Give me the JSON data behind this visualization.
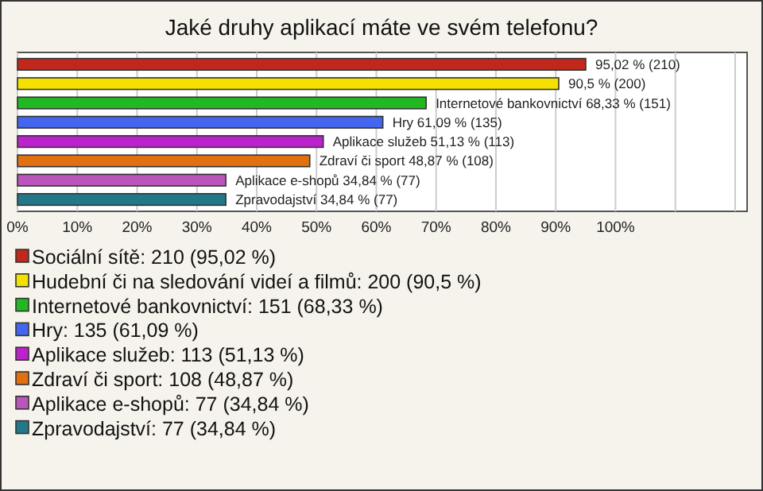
{
  "chart_data": {
    "type": "bar",
    "orientation": "horizontal",
    "title": "Jaké druhy aplikací máte ve svém telefonu?",
    "categories": [
      null
    ],
    "series": [
      {
        "name": "Sociální sítě: 210 (95,02 %)",
        "color": "#c0281c",
        "values": [
          95.02
        ],
        "value_labels": [
          "95,02 % (210)"
        ]
      },
      {
        "name": "Hudební či na sledování videí a filmů: 200 (90,5 %)",
        "color": "#f5e100",
        "values": [
          90.5
        ],
        "value_labels": [
          "90,5 % (200)"
        ]
      },
      {
        "name": "Internetové bankovnictví: 151 (68,33 %)",
        "color": "#22b822",
        "values": [
          68.33
        ],
        "value_labels": [
          "Internetové bankovnictví 68,33 % (151)"
        ]
      },
      {
        "name": "Hry: 135 (61,09 %)",
        "color": "#4466ee",
        "values": [
          61.09
        ],
        "value_labels": [
          "Hry 61,09 % (135)"
        ]
      },
      {
        "name": "Aplikace služeb: 113 (51,13 %)",
        "color": "#bb22cc",
        "values": [
          51.13
        ],
        "value_labels": [
          "Aplikace služeb 51,13 % (113)"
        ]
      },
      {
        "name": "Zdraví či sport: 108 (48,87 %)",
        "color": "#e07010",
        "values": [
          48.87
        ],
        "value_labels": [
          "Zdraví či sport 48,87 % (108)"
        ]
      },
      {
        "name": "Aplikace e-shopů: 77 (34,84 %)",
        "color": "#bb55bb",
        "values": [
          34.84
        ],
        "value_labels": [
          "Aplikace e-shopů 34,84 % (77)"
        ]
      },
      {
        "name": "Zpravodajství: 77 (34,84 %)",
        "color": "#227788",
        "values": [
          34.84
        ],
        "value_labels": [
          "Zpravodajství 34,84 % (77)"
        ]
      }
    ],
    "xlim": [
      0,
      122
    ],
    "xticks": [
      {
        "value": 0,
        "label": "0%"
      },
      {
        "value": 10,
        "label": "10%"
      },
      {
        "value": 20,
        "label": "20%"
      },
      {
        "value": 30,
        "label": "30%"
      },
      {
        "value": 40,
        "label": "40%"
      },
      {
        "value": 50,
        "label": "50%"
      },
      {
        "value": 60,
        "label": "60%"
      },
      {
        "value": 70,
        "label": "70%"
      },
      {
        "value": 80,
        "label": "80%"
      },
      {
        "value": 90,
        "label": "90%"
      },
      {
        "value": 100,
        "label": "100%"
      },
      {
        "value": 110,
        "label": null
      },
      {
        "value": 120,
        "label": null
      }
    ],
    "grid": "x",
    "legend": "bottom",
    "tick_labels": "x"
  }
}
